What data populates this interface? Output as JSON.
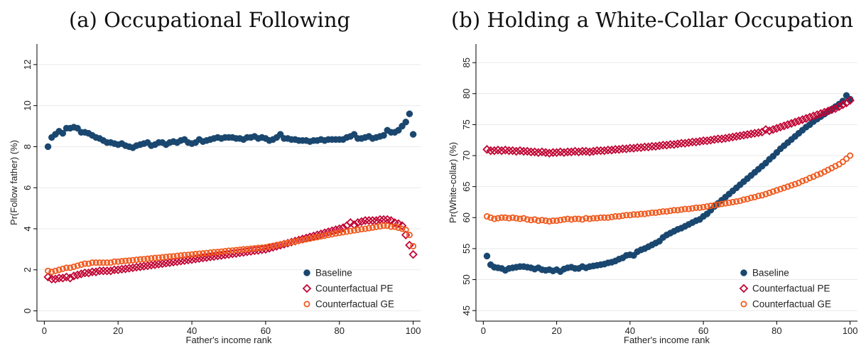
{
  "chart_data": [
    {
      "type": "scatter",
      "title": "(a) Occupational Following",
      "xlabel": "Father's income rank",
      "ylabel": "Pr(Follow father) (%)",
      "xlim": [
        -2,
        102
      ],
      "xticks": [
        0,
        20,
        40,
        60,
        80,
        100
      ],
      "ylim": [
        -0.5,
        13
      ],
      "yticks": [
        0,
        2,
        4,
        6,
        8,
        10,
        12
      ],
      "grid": true,
      "legend": "lower right",
      "x": [
        1,
        2,
        3,
        4,
        5,
        6,
        7,
        8,
        9,
        10,
        11,
        12,
        13,
        14,
        15,
        16,
        17,
        18,
        19,
        20,
        21,
        22,
        23,
        24,
        25,
        26,
        27,
        28,
        29,
        30,
        31,
        32,
        33,
        34,
        35,
        36,
        37,
        38,
        39,
        40,
        41,
        42,
        43,
        44,
        45,
        46,
        47,
        48,
        49,
        50,
        51,
        52,
        53,
        54,
        55,
        56,
        57,
        58,
        59,
        60,
        61,
        62,
        63,
        64,
        65,
        66,
        67,
        68,
        69,
        70,
        71,
        72,
        73,
        74,
        75,
        76,
        77,
        78,
        79,
        80,
        81,
        82,
        83,
        84,
        85,
        86,
        87,
        88,
        89,
        90,
        91,
        92,
        93,
        94,
        95,
        96,
        97,
        98,
        99,
        100
      ],
      "series": [
        {
          "name": "Baseline",
          "color": "#1a476f",
          "marker": "circle",
          "filled": true,
          "values": [
            8.0,
            8.45,
            8.6,
            8.75,
            8.65,
            8.9,
            8.9,
            8.95,
            8.9,
            8.7,
            8.7,
            8.65,
            8.55,
            8.45,
            8.4,
            8.3,
            8.2,
            8.2,
            8.15,
            8.1,
            8.15,
            8.05,
            8.0,
            7.95,
            8.05,
            8.1,
            8.15,
            8.2,
            8.05,
            8.1,
            8.2,
            8.2,
            8.1,
            8.2,
            8.25,
            8.2,
            8.3,
            8.35,
            8.2,
            8.15,
            8.2,
            8.35,
            8.25,
            8.3,
            8.35,
            8.4,
            8.45,
            8.4,
            8.45,
            8.45,
            8.45,
            8.4,
            8.4,
            8.35,
            8.45,
            8.45,
            8.5,
            8.4,
            8.45,
            8.4,
            8.3,
            8.35,
            8.45,
            8.6,
            8.4,
            8.4,
            8.35,
            8.35,
            8.3,
            8.3,
            8.3,
            8.25,
            8.3,
            8.3,
            8.35,
            8.3,
            8.35,
            8.35,
            8.35,
            8.35,
            8.35,
            8.45,
            8.5,
            8.6,
            8.4,
            8.4,
            8.45,
            8.5,
            8.4,
            8.45,
            8.5,
            8.55,
            8.8,
            8.7,
            8.7,
            8.8,
            9.0,
            9.2,
            9.6,
            8.6
          ]
        },
        {
          "name": "Counterfactual PE",
          "color": "#c10534",
          "marker": "diamond",
          "filled": false,
          "values": [
            1.65,
            1.55,
            1.55,
            1.6,
            1.6,
            1.65,
            1.6,
            1.7,
            1.75,
            1.8,
            1.85,
            1.85,
            1.9,
            1.9,
            1.95,
            1.95,
            1.95,
            1.95,
            2.0,
            2.0,
            2.03,
            2.05,
            2.08,
            2.1,
            2.13,
            2.15,
            2.18,
            2.2,
            2.23,
            2.25,
            2.28,
            2.3,
            2.33,
            2.35,
            2.38,
            2.4,
            2.43,
            2.45,
            2.48,
            2.5,
            2.53,
            2.55,
            2.58,
            2.6,
            2.63,
            2.65,
            2.68,
            2.7,
            2.73,
            2.75,
            2.78,
            2.8,
            2.83,
            2.85,
            2.88,
            2.9,
            2.93,
            2.95,
            2.98,
            3.0,
            3.05,
            3.1,
            3.15,
            3.2,
            3.25,
            3.3,
            3.35,
            3.4,
            3.45,
            3.5,
            3.55,
            3.6,
            3.65,
            3.7,
            3.75,
            3.8,
            3.85,
            3.9,
            3.95,
            4.0,
            4.05,
            4.15,
            4.3,
            4.2,
            4.3,
            4.35,
            4.4,
            4.4,
            4.4,
            4.4,
            4.45,
            4.45,
            4.45,
            4.4,
            4.3,
            4.25,
            4.15,
            3.7,
            3.2,
            2.75
          ]
        },
        {
          "name": "Counterfactual GE",
          "color": "#f05a1e",
          "marker": "circle",
          "filled": false,
          "values": [
            1.95,
            1.9,
            1.95,
            2.0,
            2.05,
            2.1,
            2.1,
            2.15,
            2.2,
            2.25,
            2.3,
            2.3,
            2.35,
            2.35,
            2.35,
            2.35,
            2.35,
            2.35,
            2.4,
            2.4,
            2.42,
            2.44,
            2.45,
            2.47,
            2.49,
            2.51,
            2.52,
            2.54,
            2.56,
            2.58,
            2.59,
            2.61,
            2.63,
            2.65,
            2.66,
            2.68,
            2.7,
            2.72,
            2.73,
            2.75,
            2.77,
            2.79,
            2.8,
            2.82,
            2.84,
            2.86,
            2.87,
            2.89,
            2.91,
            2.93,
            2.94,
            2.96,
            2.98,
            3.0,
            3.01,
            3.03,
            3.05,
            3.07,
            3.08,
            3.1,
            3.14,
            3.17,
            3.21,
            3.24,
            3.28,
            3.31,
            3.35,
            3.38,
            3.42,
            3.45,
            3.49,
            3.52,
            3.56,
            3.59,
            3.63,
            3.66,
            3.7,
            3.73,
            3.77,
            3.8,
            3.83,
            3.86,
            3.89,
            3.92,
            3.95,
            3.98,
            4.0,
            4.03,
            4.06,
            4.09,
            4.12,
            4.15,
            4.15,
            4.1,
            4.1,
            4.05,
            4.0,
            3.95,
            3.7,
            3.15
          ]
        }
      ]
    },
    {
      "type": "scatter",
      "title": "(b) Holding a White-Collar Occupation",
      "xlabel": "Father's income rank",
      "ylabel": "Pr(White-collar) (%)",
      "xlim": [
        -2,
        102
      ],
      "xticks": [
        0,
        20,
        40,
        60,
        80,
        100
      ],
      "ylim": [
        43.3,
        88
      ],
      "yticks": [
        45,
        50,
        55,
        60,
        65,
        70,
        75,
        80,
        85
      ],
      "grid": true,
      "legend": "lower right",
      "x": [
        1,
        2,
        3,
        4,
        5,
        6,
        7,
        8,
        9,
        10,
        11,
        12,
        13,
        14,
        15,
        16,
        17,
        18,
        19,
        20,
        21,
        22,
        23,
        24,
        25,
        26,
        27,
        28,
        29,
        30,
        31,
        32,
        33,
        34,
        35,
        36,
        37,
        38,
        39,
        40,
        41,
        42,
        43,
        44,
        45,
        46,
        47,
        48,
        49,
        50,
        51,
        52,
        53,
        54,
        55,
        56,
        57,
        58,
        59,
        60,
        61,
        62,
        63,
        64,
        65,
        66,
        67,
        68,
        69,
        70,
        71,
        72,
        73,
        74,
        75,
        76,
        77,
        78,
        79,
        80,
        81,
        82,
        83,
        84,
        85,
        86,
        87,
        88,
        89,
        90,
        91,
        92,
        93,
        94,
        95,
        96,
        97,
        98,
        99,
        100
      ],
      "series": [
        {
          "name": "Baseline",
          "color": "#1a476f",
          "marker": "circle",
          "filled": true,
          "values": [
            53.8,
            52.4,
            52.0,
            51.9,
            51.8,
            51.5,
            51.8,
            51.9,
            52.0,
            52.1,
            52.1,
            52.0,
            51.9,
            51.7,
            51.9,
            51.6,
            51.5,
            51.6,
            51.4,
            51.6,
            51.3,
            51.7,
            51.9,
            52.0,
            51.8,
            51.8,
            52.1,
            51.9,
            52.1,
            52.2,
            52.3,
            52.4,
            52.5,
            52.7,
            52.8,
            53.0,
            53.3,
            53.5,
            53.9,
            54.0,
            53.9,
            54.5,
            54.8,
            55.0,
            55.3,
            55.6,
            55.9,
            56.2,
            56.8,
            57.2,
            57.5,
            57.8,
            58.1,
            58.3,
            58.6,
            58.9,
            59.2,
            59.5,
            59.7,
            60.2,
            60.6,
            61.2,
            61.8,
            62.3,
            62.8,
            63.3,
            63.8,
            64.3,
            64.8,
            65.3,
            65.8,
            66.3,
            66.8,
            67.3,
            67.8,
            68.3,
            68.8,
            69.4,
            69.9,
            70.5,
            71.1,
            71.6,
            72.1,
            72.6,
            73.1,
            73.6,
            74.1,
            74.6,
            75.0,
            75.5,
            75.9,
            76.3,
            76.7,
            77.1,
            77.5,
            77.9,
            78.3,
            78.8,
            79.7,
            79.1
          ]
        },
        {
          "name": "Counterfactual PE",
          "color": "#c10534",
          "marker": "diamond",
          "filled": false,
          "values": [
            71.0,
            70.8,
            70.8,
            70.9,
            70.8,
            70.9,
            70.8,
            70.8,
            70.7,
            70.8,
            70.7,
            70.7,
            70.6,
            70.6,
            70.5,
            70.6,
            70.5,
            70.4,
            70.5,
            70.5,
            70.6,
            70.5,
            70.6,
            70.6,
            70.7,
            70.6,
            70.7,
            70.7,
            70.6,
            70.7,
            70.8,
            70.8,
            70.8,
            70.9,
            70.9,
            71.0,
            71.0,
            71.1,
            71.1,
            71.2,
            71.2,
            71.3,
            71.3,
            71.4,
            71.4,
            71.5,
            71.5,
            71.6,
            71.7,
            71.7,
            71.8,
            71.8,
            71.9,
            72.0,
            72.0,
            72.1,
            72.2,
            72.2,
            72.3,
            72.4,
            72.4,
            72.5,
            72.6,
            72.7,
            72.7,
            72.8,
            72.9,
            73.0,
            73.1,
            73.2,
            73.3,
            73.4,
            73.5,
            73.6,
            73.7,
            73.8,
            74.2,
            74.0,
            74.2,
            74.4,
            74.6,
            74.8,
            75.0,
            75.2,
            75.4,
            75.6,
            75.8,
            76.0,
            76.2,
            76.4,
            76.6,
            76.8,
            77.0,
            77.2,
            77.4,
            77.6,
            77.9,
            78.2,
            78.5,
            78.9
          ]
        },
        {
          "name": "Counterfactual GE",
          "color": "#f05a1e",
          "marker": "circle",
          "filled": false,
          "values": [
            60.2,
            60.0,
            59.8,
            59.9,
            60.0,
            60.0,
            59.9,
            60.0,
            59.9,
            59.8,
            59.9,
            59.7,
            59.6,
            59.7,
            59.5,
            59.6,
            59.5,
            59.4,
            59.5,
            59.5,
            59.6,
            59.7,
            59.8,
            59.7,
            59.8,
            59.8,
            59.7,
            59.9,
            59.8,
            59.9,
            59.9,
            60.0,
            60.0,
            60.0,
            60.1,
            60.2,
            60.2,
            60.3,
            60.4,
            60.4,
            60.5,
            60.5,
            60.6,
            60.6,
            60.7,
            60.8,
            60.8,
            60.9,
            61.0,
            61.0,
            61.1,
            61.2,
            61.2,
            61.3,
            61.4,
            61.4,
            61.5,
            61.6,
            61.6,
            61.7,
            61.8,
            61.9,
            62.0,
            62.1,
            62.2,
            62.3,
            62.4,
            62.5,
            62.6,
            62.7,
            62.9,
            63.0,
            63.2,
            63.3,
            63.5,
            63.6,
            63.8,
            64.0,
            64.2,
            64.4,
            64.6,
            64.8,
            65.0,
            65.2,
            65.4,
            65.6,
            65.9,
            66.1,
            66.4,
            66.6,
            66.9,
            67.1,
            67.4,
            67.7,
            68.0,
            68.3,
            68.6,
            69.0,
            69.5,
            70.0
          ]
        }
      ]
    }
  ]
}
